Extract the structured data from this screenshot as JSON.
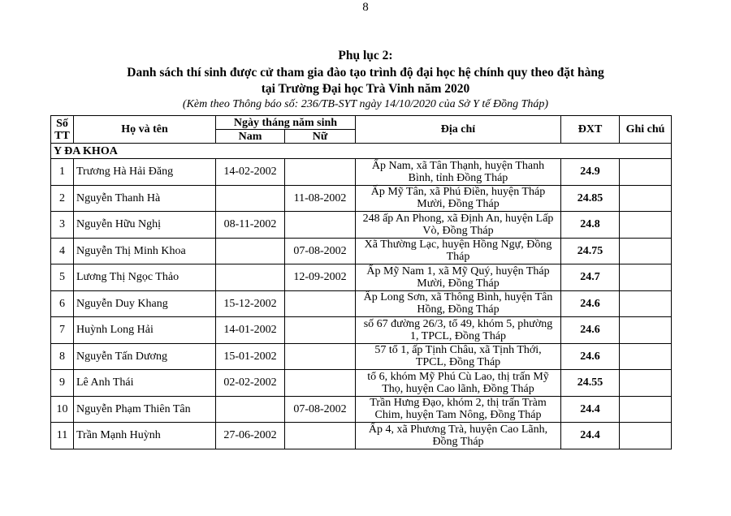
{
  "page_number": "8",
  "title": {
    "line1": "Phụ lục 2:",
    "line2": "Danh sách thí sinh được cử tham gia đào tạo trình độ đại học hệ chính quy theo đặt hàng",
    "line3": "tại Trường Đại học Trà Vinh năm 2020",
    "subtitle": "(Kèm theo Thông báo số: 236/TB-SYT ngày 14/10/2020 của Sở Y tế Đồng Tháp)"
  },
  "table": {
    "headers": {
      "stt": "Số TT",
      "name": "Họ và tên",
      "dob": "Ngày tháng năm sinh",
      "male": "Nam",
      "female": "Nữ",
      "address": "Địa chỉ",
      "dxt": "ĐXT",
      "note": "Ghi chú"
    },
    "section": "Y ĐA KHOA",
    "rows": [
      {
        "stt": "1",
        "name": "Trương Hà Hải Đăng",
        "male": "14-02-2002",
        "female": "",
        "address": "Ấp Nam, xã Tân Thạnh, huyện Thanh Bình, tỉnh Đồng Tháp",
        "dxt": "24.9",
        "note": ""
      },
      {
        "stt": "2",
        "name": "Nguyễn Thanh Hà",
        "male": "",
        "female": "11-08-2002",
        "address": "Ấp Mỹ Tân, xã Phú Điền, huyện Tháp Mười, Đồng Tháp",
        "dxt": "24.85",
        "note": ""
      },
      {
        "stt": "3",
        "name": "Nguyễn Hữu Nghị",
        "male": "08-11-2002",
        "female": "",
        "address": "248 ấp An Phong, xã Định An, huyện Lấp Vò, Đồng Tháp",
        "dxt": "24.8",
        "note": ""
      },
      {
        "stt": "4",
        "name": "Nguyễn Thị Minh Khoa",
        "male": "",
        "female": "07-08-2002",
        "address": "Xã Thường Lạc, huyện Hồng Ngự, Đồng Tháp",
        "dxt": "24.75",
        "note": ""
      },
      {
        "stt": "5",
        "name": "Lương Thị Ngọc Thảo",
        "male": "",
        "female": "12-09-2002",
        "address": "Ấp Mỹ Nam 1, xã Mỹ Quý, huyện Tháp Mười, Đồng Tháp",
        "dxt": "24.7",
        "note": ""
      },
      {
        "stt": "6",
        "name": "Nguyễn Duy Khang",
        "male": "15-12-2002",
        "female": "",
        "address": "Ấp Long Sơn, xã Thông Bình, huyện Tân Hồng, Đồng Tháp",
        "dxt": "24.6",
        "note": ""
      },
      {
        "stt": "7",
        "name": "Huỳnh Long Hải",
        "male": "14-01-2002",
        "female": "",
        "address": "số 67 đường 26/3, tổ 49, khóm 5, phường 1, TPCL, Đồng Tháp",
        "dxt": "24.6",
        "note": ""
      },
      {
        "stt": "8",
        "name": "Nguyễn Tấn Dương",
        "male": "15-01-2002",
        "female": "",
        "address": "57 tổ 1, ấp Tịnh Châu, xã Tịnh Thới, TPCL, Đồng Tháp",
        "dxt": "24.6",
        "note": ""
      },
      {
        "stt": "9",
        "name": "Lê Anh Thái",
        "male": "02-02-2002",
        "female": "",
        "address": "tổ 6, khóm Mỹ Phú Cù Lao, thị trấn Mỹ Thọ, huyện Cao lãnh, Đồng Tháp",
        "dxt": "24.55",
        "note": ""
      },
      {
        "stt": "10",
        "name": "Nguyễn Phạm Thiên Tân",
        "male": "",
        "female": "07-08-2002",
        "address": "Trần Hưng Đạo, khóm 2, thị trấn Tràm Chim, huyện Tam Nông, Đồng Tháp",
        "dxt": "24.4",
        "note": ""
      },
      {
        "stt": "11",
        "name": "Trần Mạnh Huỳnh",
        "male": "27-06-2002",
        "female": "",
        "address": "Ấp 4, xã Phương Trà, huyện Cao Lãnh, Đồng Tháp",
        "dxt": "24.4",
        "note": ""
      }
    ]
  }
}
